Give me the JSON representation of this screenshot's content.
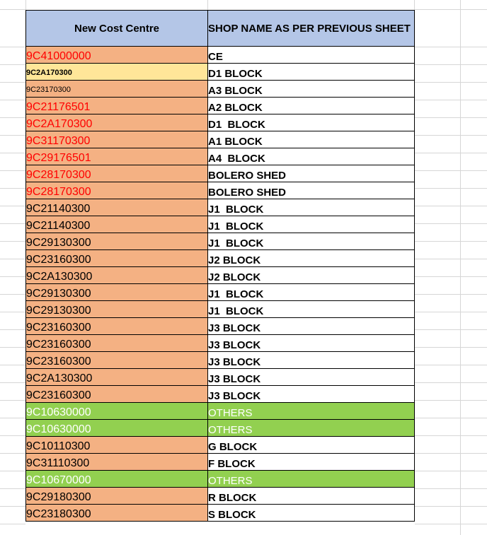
{
  "app": {
    "kind": "spreadsheet-cost-centre-mapping"
  },
  "colors": {
    "header_bg": "#b4c6e7",
    "cost_centre_fill_orange": "#f4b183",
    "cost_centre_fill_yellow": "#ffe699",
    "others_fill_green": "#92d050",
    "red_text": "#ff0000",
    "gridline_gray": "#d6d6d6",
    "border_black": "#000000"
  },
  "table": {
    "columns": [
      {
        "label": "New Cost Centre"
      },
      {
        "label": "SHOP NAME AS PER PREVIOUS SHEET"
      }
    ],
    "rows": [
      {
        "cost_centre": "9C41000000",
        "shop_name": "CE",
        "variant": "red"
      },
      {
        "cost_centre": "9C2A170300",
        "shop_name": "D1 BLOCK",
        "variant": "yellow"
      },
      {
        "cost_centre": "9C23170300",
        "shop_name": "A3 BLOCK",
        "variant": "small"
      },
      {
        "cost_centre": "9C21176501",
        "shop_name": "A2 BLOCK",
        "variant": "red"
      },
      {
        "cost_centre": "9C2A170300",
        "shop_name": "D1  BLOCK",
        "variant": "red"
      },
      {
        "cost_centre": "9C31170300",
        "shop_name": "A1 BLOCK",
        "variant": "red"
      },
      {
        "cost_centre": "9C29176501",
        "shop_name": "A4  BLOCK",
        "variant": "red"
      },
      {
        "cost_centre": "9C28170300",
        "shop_name": "BOLERO SHED",
        "variant": "red"
      },
      {
        "cost_centre": "9C28170300",
        "shop_name": "BOLERO SHED",
        "variant": "red"
      },
      {
        "cost_centre": "9C21140300",
        "shop_name": "J1  BLOCK",
        "variant": "black"
      },
      {
        "cost_centre": "9C21140300",
        "shop_name": "J1  BLOCK",
        "variant": "black"
      },
      {
        "cost_centre": "9C29130300",
        "shop_name": "J1  BLOCK",
        "variant": "black"
      },
      {
        "cost_centre": "9C23160300",
        "shop_name": "J2 BLOCK",
        "variant": "black"
      },
      {
        "cost_centre": "9C2A130300",
        "shop_name": "J2 BLOCK",
        "variant": "black"
      },
      {
        "cost_centre": "9C29130300",
        "shop_name": "J1  BLOCK",
        "variant": "black"
      },
      {
        "cost_centre": "9C29130300",
        "shop_name": "J1  BLOCK",
        "variant": "black"
      },
      {
        "cost_centre": "9C23160300",
        "shop_name": "J3 BLOCK",
        "variant": "black"
      },
      {
        "cost_centre": "9C23160300",
        "shop_name": "J3 BLOCK",
        "variant": "black"
      },
      {
        "cost_centre": "9C23160300",
        "shop_name": "J3 BLOCK",
        "variant": "black"
      },
      {
        "cost_centre": "9C2A130300",
        "shop_name": "J3 BLOCK",
        "variant": "black"
      },
      {
        "cost_centre": "9C23160300",
        "shop_name": "J3 BLOCK",
        "variant": "black"
      },
      {
        "cost_centre": "9C10630000",
        "shop_name": "OTHERS",
        "variant": "green"
      },
      {
        "cost_centre": "9C10630000",
        "shop_name": "OTHERS",
        "variant": "green"
      },
      {
        "cost_centre": "9C10110300",
        "shop_name": "G BLOCK",
        "variant": "black"
      },
      {
        "cost_centre": "9C31110300",
        "shop_name": "F BLOCK",
        "variant": "black"
      },
      {
        "cost_centre": "9C10670000",
        "shop_name": "OTHERS",
        "variant": "green"
      },
      {
        "cost_centre": "9C29180300",
        "shop_name": "R BLOCK",
        "variant": "black"
      },
      {
        "cost_centre": "9C23180300",
        "shop_name": "S BLOCK",
        "variant": "black"
      }
    ]
  }
}
